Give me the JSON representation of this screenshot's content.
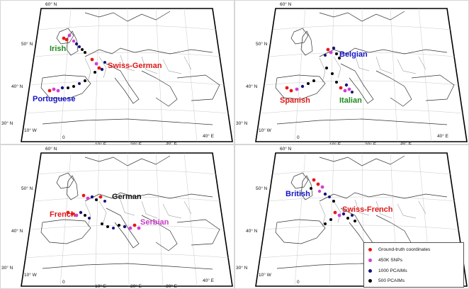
{
  "ticks": {
    "lat": [
      "60° N",
      "50° N",
      "40° N",
      "30° N"
    ],
    "lon": [
      "10° W",
      "0",
      "10° E",
      "20° E",
      "30° E",
      "40° E"
    ]
  },
  "panels": [
    {
      "id": "tl",
      "labels": [
        {
          "text": "Irish",
          "color": "#1e8a1e"
        },
        {
          "text": "Swiss-German",
          "color": "#e01818"
        },
        {
          "text": "Portuguese",
          "color": "#1414c8"
        }
      ]
    },
    {
      "id": "tr",
      "labels": [
        {
          "text": "Belgian",
          "color": "#1414c8"
        },
        {
          "text": "Spanish",
          "color": "#e01818"
        },
        {
          "text": "Italian",
          "color": "#1e8a1e"
        }
      ]
    },
    {
      "id": "bl",
      "labels": [
        {
          "text": "German",
          "color": "#111111"
        },
        {
          "text": "French",
          "color": "#e01818"
        },
        {
          "text": "Serbian",
          "color": "#c83cc8"
        }
      ]
    },
    {
      "id": "br",
      "labels": [
        {
          "text": "British",
          "color": "#1414c8"
        },
        {
          "text": "Swiss-French",
          "color": "#e01818"
        }
      ]
    }
  ],
  "legend": {
    "items": [
      {
        "label": "Ground-truth coordinates",
        "color": "#e81818"
      },
      {
        "label": "450K SNPs",
        "color": "#d43cd4"
      },
      {
        "label": "1000 PCAIMs",
        "color": "#14147a"
      },
      {
        "label": "500 PCAIMs",
        "color": "#000000"
      }
    ]
  }
}
